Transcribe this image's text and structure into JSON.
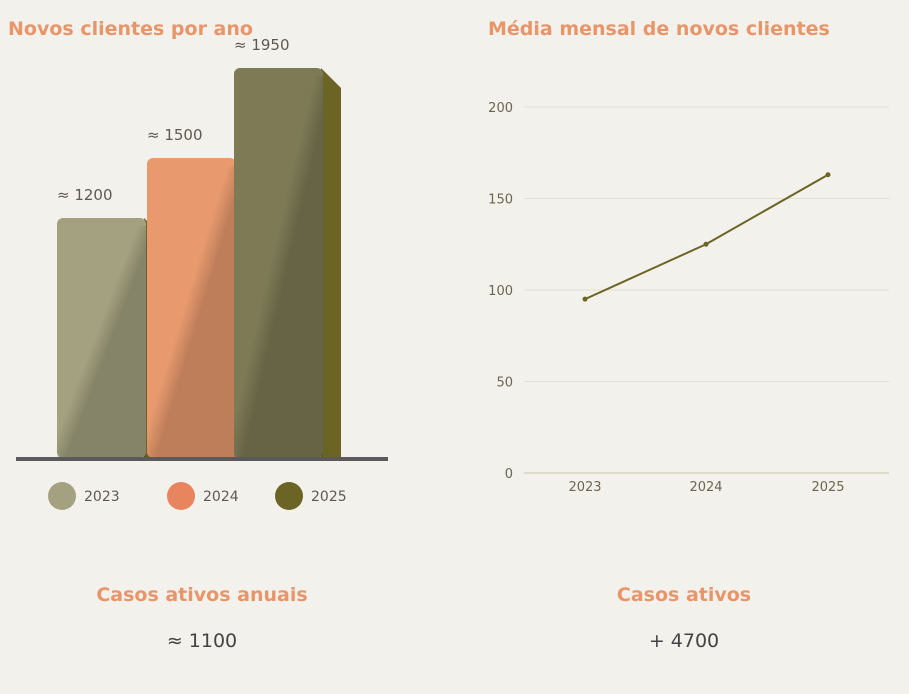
{
  "colors": {
    "accent": "#e8956a",
    "background": "#f3f1ec"
  },
  "chart_data": [
    {
      "type": "bar",
      "title": "Novos clientes por ano",
      "categories": [
        "2023",
        "2024",
        "2025"
      ],
      "values": [
        1200,
        1500,
        1950
      ],
      "data_labels": [
        "≈ 1200",
        "≈ 1500",
        "≈ 1950"
      ],
      "ylim": [
        0,
        2000
      ],
      "colors": [
        "#a3a17f",
        "#e89a6e",
        "#7d7a55"
      ],
      "side_colors": [
        "#6b6425",
        "#e87d57",
        "#6b6425"
      ],
      "legend": [
        "2023",
        "2024",
        "2025"
      ],
      "legend_colors": [
        "#a3a17f",
        "#e8845e",
        "#6b6425"
      ],
      "legend_position": "bottom",
      "grid": false
    },
    {
      "type": "line",
      "title": "Média mensal de novos clientes",
      "x": [
        "2023",
        "2024",
        "2025"
      ],
      "values": [
        95,
        125,
        163
      ],
      "ylim": [
        0,
        200
      ],
      "yticks": [
        0,
        50,
        100,
        150,
        200
      ],
      "color": "#6b6425",
      "grid": true
    }
  ],
  "stats": [
    {
      "title": "Casos ativos anuais",
      "value": "≈ 1100"
    },
    {
      "title": "Casos ativos",
      "value": "+ 4700"
    }
  ]
}
